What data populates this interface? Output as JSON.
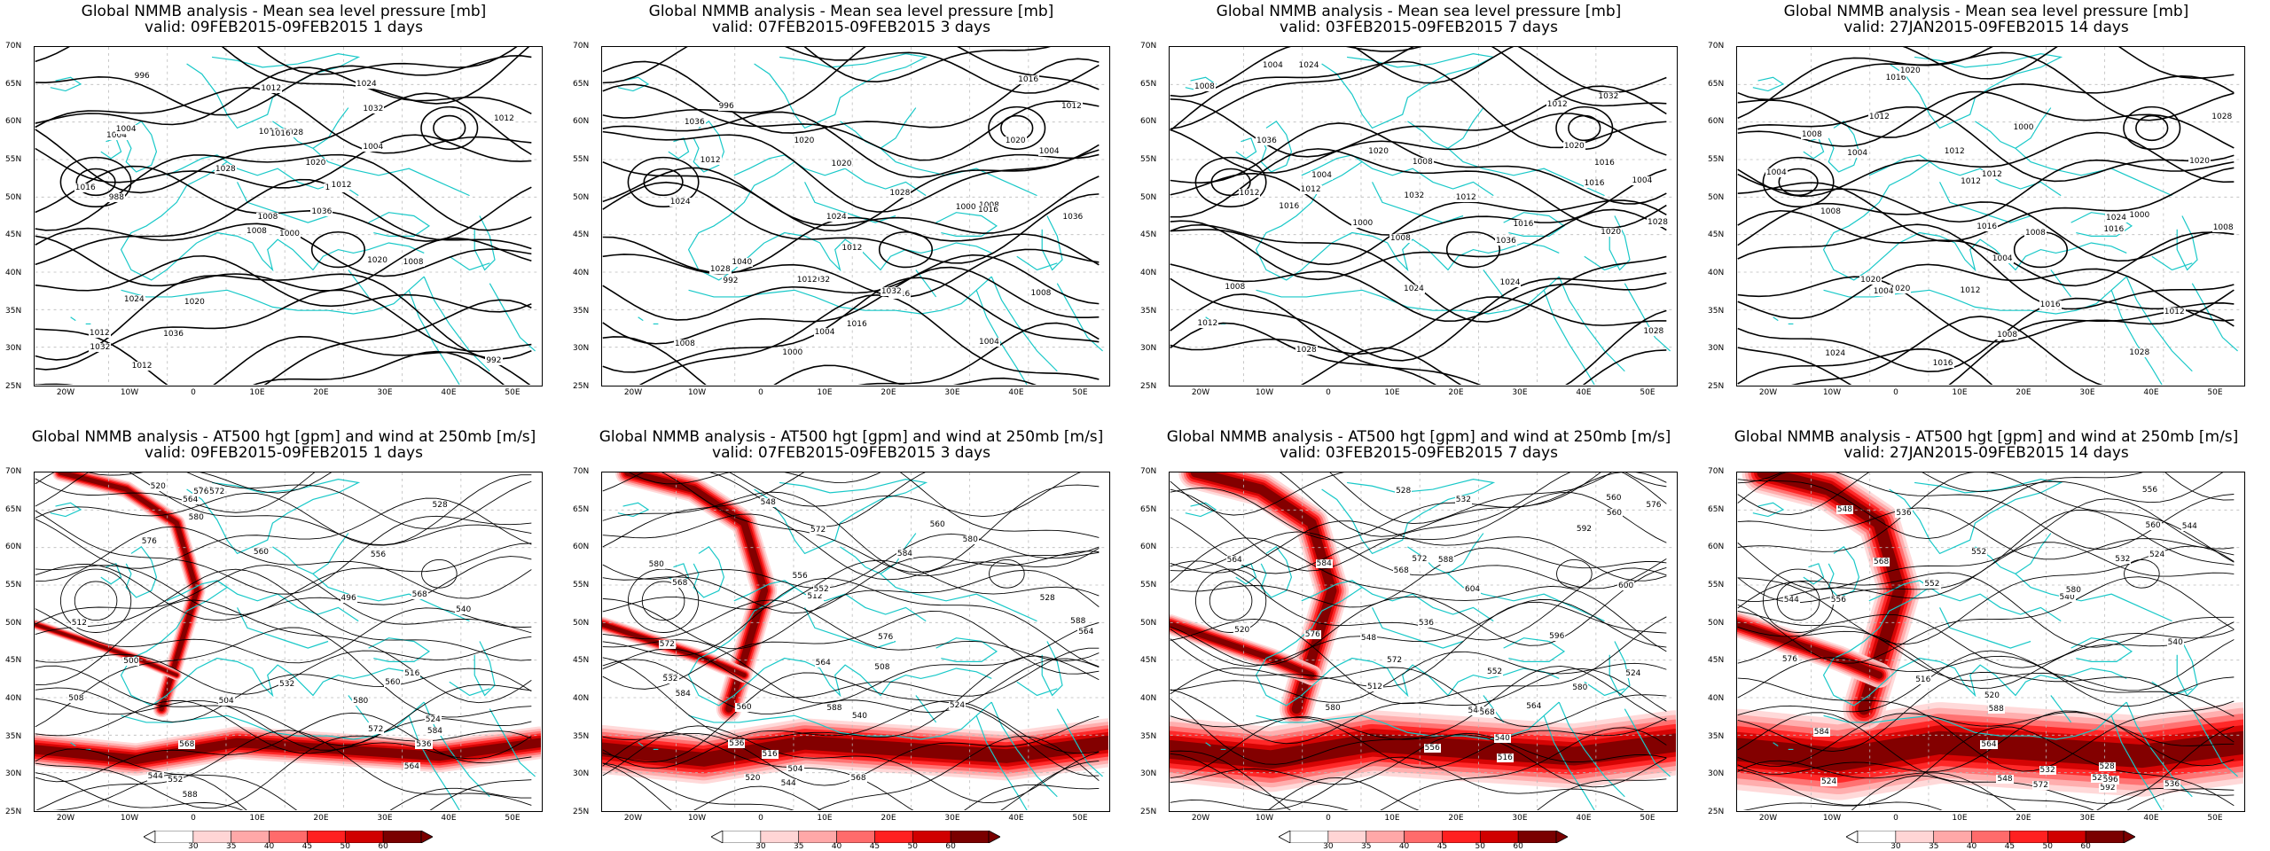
{
  "panels": [
    {
      "title": "Global NMMB analysis - Mean sea level pressure [mb]",
      "valid": "valid: 09FEB2015-09FEB2015   1 days",
      "type": "mslp",
      "labels": [
        "1000",
        "1004",
        "1008",
        "1012",
        "1016",
        "1020",
        "1024",
        "1028",
        "1032",
        "1036",
        "996",
        "992",
        "988",
        "1012",
        "1008",
        "1004",
        "1012",
        "1016",
        "1020",
        "1024",
        "1028",
        "1032",
        "1036",
        "1016",
        "1012",
        "1008",
        "1004",
        "1012",
        "1016",
        "1020"
      ]
    },
    {
      "title": "Global NMMB analysis - Mean sea level pressure [mb]",
      "valid": "valid: 07FEB2015-09FEB2015   3 days",
      "type": "mslp",
      "labels": [
        "1000",
        "1004",
        "1008",
        "1012",
        "1016",
        "1020",
        "1024",
        "1028",
        "1032",
        "1036",
        "992",
        "996",
        "1000",
        "1004",
        "1008",
        "1012",
        "1016",
        "1020",
        "1024",
        "1028",
        "1032",
        "1036",
        "1040",
        "1016",
        "1012",
        "1008",
        "1004",
        "1012",
        "1016",
        "1020"
      ]
    },
    {
      "title": "Global NMMB analysis - Mean sea level pressure [mb]",
      "valid": "valid: 03FEB2015-09FEB2015   7 days",
      "type": "mslp",
      "labels": [
        "1004",
        "1008",
        "1012",
        "1016",
        "1020",
        "1024",
        "1028",
        "1032",
        "1036",
        "1000",
        "1004",
        "1008",
        "1012",
        "1016",
        "1020",
        "1024",
        "1028",
        "1032",
        "1036",
        "1008",
        "1012",
        "1016",
        "1012",
        "1008",
        "1004",
        "1012",
        "1016",
        "1020",
        "1024",
        "1028"
      ]
    },
    {
      "title": "Global NMMB analysis - Mean sea level pressure [mb]",
      "valid": "valid: 27JAN2015-09FEB2015   14 days",
      "type": "mslp",
      "labels": [
        "1004",
        "1008",
        "1012",
        "1016",
        "1020",
        "1000",
        "1004",
        "1008",
        "1012",
        "1016",
        "1020",
        "1024",
        "1028",
        "1000",
        "1004",
        "1008",
        "1012",
        "1016",
        "1020",
        "1012",
        "1008",
        "1004",
        "1012",
        "1016",
        "1020",
        "1024",
        "1028",
        "1016",
        "1012",
        "1008"
      ]
    },
    {
      "title": "Global NMMB analysis - AT500 hgt [gpm] and wind at 250mb [m/s]",
      "valid": "valid: 09FEB2015-09FEB2015   1 days",
      "type": "z500",
      "labels": [
        "560",
        "564",
        "568",
        "572",
        "576",
        "580",
        "584",
        "588",
        "496",
        "500",
        "504",
        "508",
        "512",
        "516",
        "520",
        "524",
        "528",
        "532",
        "536",
        "540",
        "544",
        "548",
        "552",
        "556",
        "560",
        "564",
        "568",
        "572",
        "576",
        "580"
      ]
    },
    {
      "title": "Global NMMB analysis - AT500 hgt [gpm] and wind at 250mb [m/s]",
      "valid": "valid: 07FEB2015-09FEB2015   3 days",
      "type": "z500",
      "labels": [
        "560",
        "564",
        "568",
        "572",
        "576",
        "580",
        "584",
        "588",
        "504",
        "508",
        "512",
        "516",
        "520",
        "524",
        "528",
        "532",
        "536",
        "540",
        "544",
        "548",
        "552",
        "556",
        "560",
        "564",
        "568",
        "572",
        "576",
        "580",
        "584",
        "588"
      ]
    },
    {
      "title": "Global NMMB analysis - AT500 hgt [gpm] and wind at 250mb [m/s]",
      "valid": "valid: 03FEB2015-09FEB2015   7 days",
      "type": "z500",
      "labels": [
        "560",
        "564",
        "568",
        "572",
        "576",
        "580",
        "512",
        "516",
        "520",
        "524",
        "528",
        "532",
        "536",
        "540",
        "544",
        "548",
        "552",
        "556",
        "560",
        "564",
        "568",
        "572",
        "576",
        "580",
        "584",
        "588",
        "592",
        "596",
        "600",
        "604"
      ]
    },
    {
      "title": "Global NMMB analysis - AT500 hgt [gpm] and wind at 250mb [m/s]",
      "valid": "valid: 27JAN2015-09FEB2015   14 days",
      "type": "z500",
      "labels": [
        "524",
        "528",
        "532",
        "536",
        "540",
        "544",
        "548",
        "552",
        "556",
        "516",
        "520",
        "524",
        "528",
        "532",
        "536",
        "540",
        "544",
        "548",
        "552",
        "556",
        "560",
        "564",
        "568",
        "572",
        "576",
        "580",
        "584",
        "588",
        "592",
        "596"
      ]
    }
  ],
  "lat_ticks": [
    "70N",
    "65N",
    "60N",
    "55N",
    "50N",
    "45N",
    "40N",
    "35N",
    "30N",
    "25N"
  ],
  "lon_ticks": [
    "20W",
    "10W",
    "0",
    "10E",
    "20E",
    "30E",
    "40E",
    "50E"
  ],
  "colorbar": {
    "labels": [
      "30",
      "35",
      "40",
      "45",
      "50",
      "60"
    ],
    "colors": [
      "#ffffff",
      "#ffd5d5",
      "#ffa8a8",
      "#ff6b6b",
      "#ff2020",
      "#d00000",
      "#7a0000"
    ]
  },
  "colors": {
    "coast": "#18c8c8",
    "contour": "#000000",
    "grid": "#bbbbbb"
  }
}
